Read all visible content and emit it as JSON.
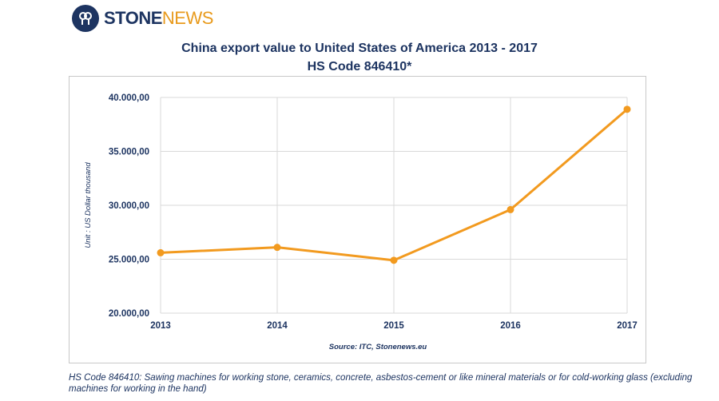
{
  "brand": {
    "stone": "STONE",
    "news": "NEWS",
    "primary_color": "#1d3461",
    "accent_color": "#e89a1c"
  },
  "chart_data": {
    "type": "line",
    "title": "China export value to United States of America 2013 - 2017",
    "subtitle": "HS Code 846410*",
    "categories": [
      "2013",
      "2014",
      "2015",
      "2016",
      "2017"
    ],
    "series": [
      {
        "values": [
          25600,
          26100,
          24900,
          29600,
          38900
        ],
        "color": "#f29a1f"
      }
    ],
    "ylabel": "Unit : US Dollar thousand",
    "xlabel": "",
    "ylim": [
      20000,
      40000
    ],
    "yticks": [
      "20.000,00",
      "25.000,00",
      "30.000,00",
      "35.000,00",
      "40.000,00"
    ],
    "grid": true,
    "source": "Source: ITC, Stonenews.eu"
  },
  "footnote": "HS Code 846410: Sawing machines for working stone, ceramics, concrete, asbestos-cement or like mineral materials or for cold-working glass (excluding machines for working in the hand)"
}
